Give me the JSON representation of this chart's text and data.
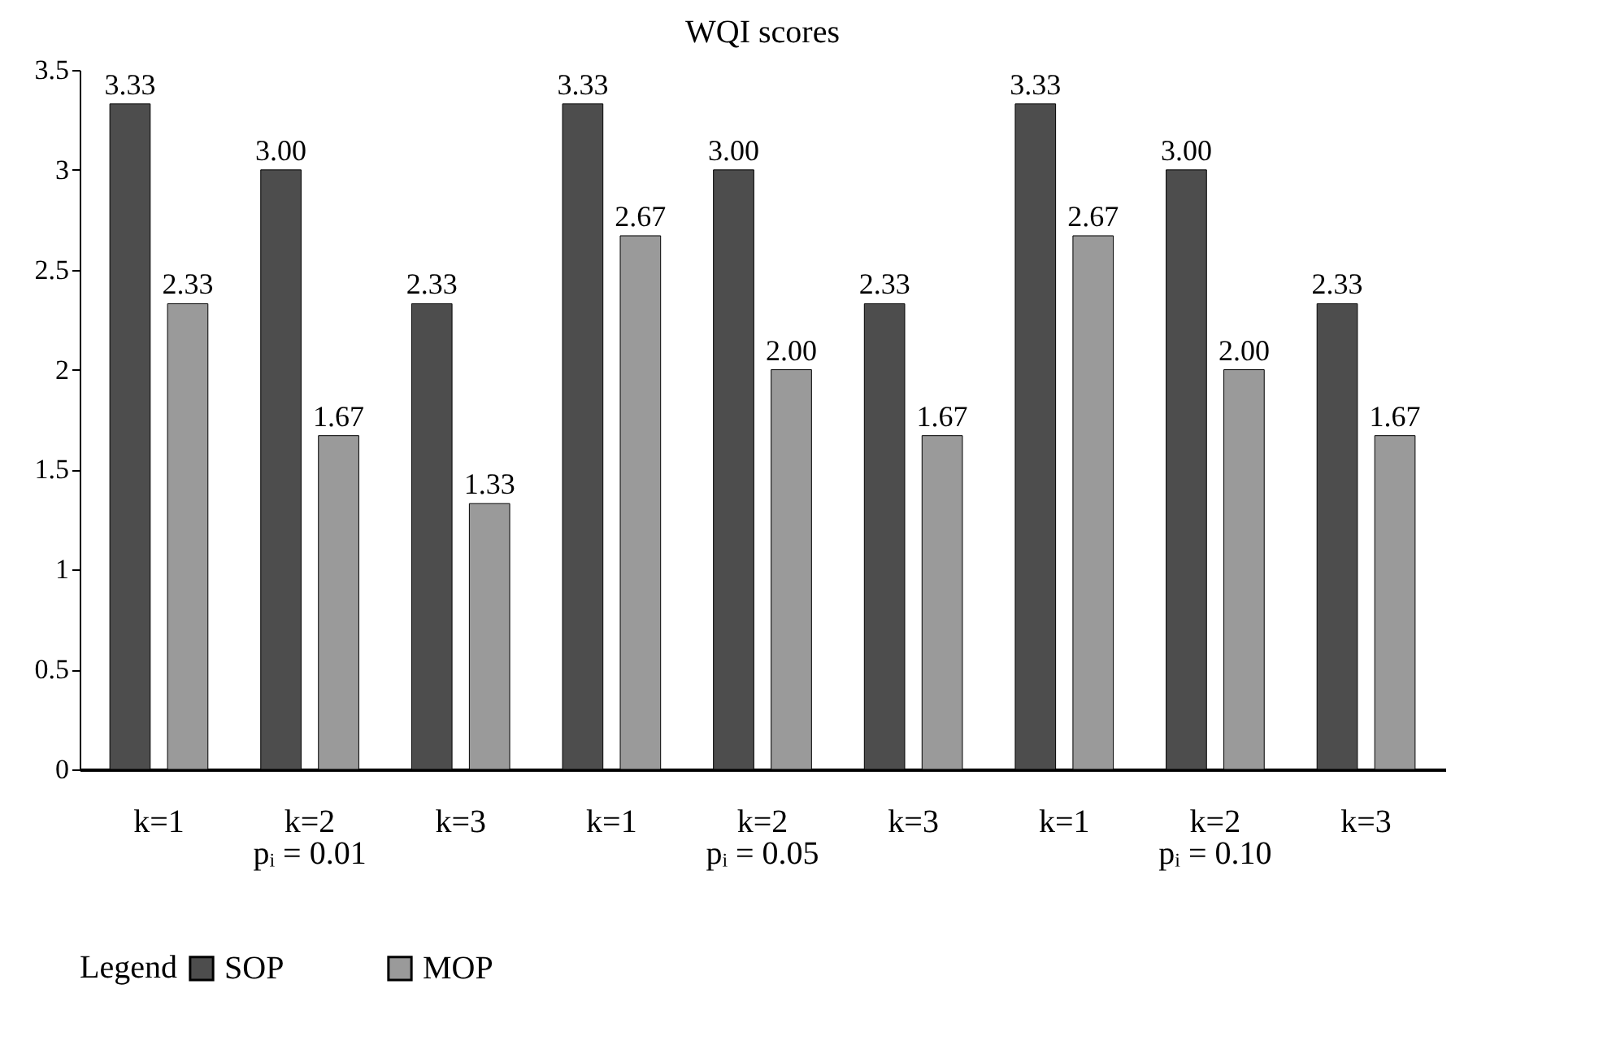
{
  "chart_data": {
    "type": "bar",
    "title": "WQI scores",
    "categories": [
      "k=1",
      "k=2",
      "k=3",
      "k=1",
      "k=2",
      "k=3",
      "k=1",
      "k=2",
      "k=3"
    ],
    "series": [
      {
        "name": "SOP",
        "color": "#4d4d4d",
        "values": [
          3.33,
          3.0,
          2.33,
          3.33,
          3.0,
          2.33,
          3.33,
          3.0,
          2.33
        ],
        "value_labels": [
          "3.33",
          "3.00",
          "2.33",
          "3.33",
          "3.00",
          "2.33",
          "3.33",
          "3.00",
          "2.33"
        ]
      },
      {
        "name": "MOP",
        "color": "#9a9a9a",
        "values": [
          2.33,
          1.67,
          1.33,
          2.67,
          2.0,
          1.67,
          2.67,
          2.0,
          1.67
        ],
        "value_labels": [
          "2.33",
          "1.67",
          "1.33",
          "2.67",
          "2.00",
          "1.67",
          "2.67",
          "2.00",
          "1.67"
        ]
      }
    ],
    "ylim": [
      0,
      3.5
    ],
    "yticks": [
      0,
      0.5,
      1,
      1.5,
      2,
      2.5,
      3,
      3.5
    ],
    "grid": false,
    "legend": "bottom",
    "legend_title": "Legend",
    "annotations": [
      "pᵢ = 0.01",
      "pᵢ = 0.05",
      "pᵢ = 0.10"
    ]
  }
}
